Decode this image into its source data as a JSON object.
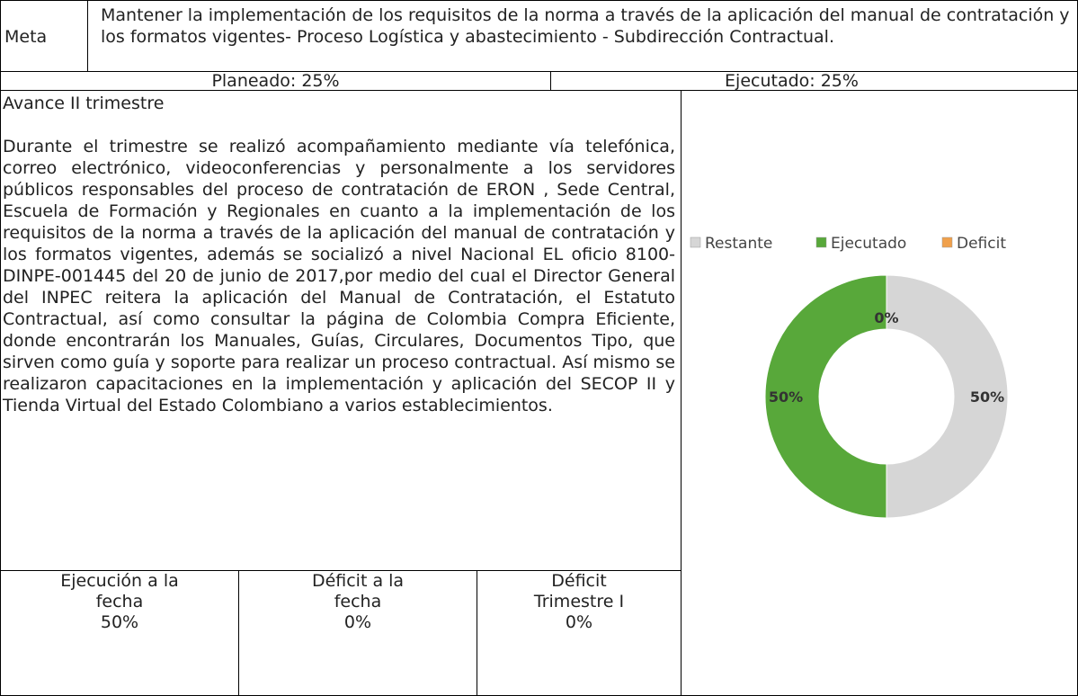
{
  "meta": {
    "label": "Meta",
    "text": "Mantener la implementación de los requisitos de la norma a través de la aplicación del manual de contratación y los formatos vigentes- Proceso Logística y abastecimiento - Subdirección Contractual."
  },
  "planeado": "Planeado: 25%",
  "ejecutado": "Ejecutado: 25%",
  "avance": {
    "heading": "Avance II trimestre",
    "body": "Durante el trimestre se realizó acompañamiento mediante vía telefónica, correo electrónico, videoconferencias y personalmente a los servidores públicos responsables del proceso de contratación de ERON , Sede Central, Escuela de Formación y  Regionales en cuanto a la implementación de los requisitos de la norma a través de la aplicación del manual de contratación y los formatos vigentes, además se socializó a nivel Nacional EL oficio 8100- DINPE-001445 del 20 de junio de 2017,por medio del cual el Director General del INPEC reitera la aplicación del Manual de Contratación, el Estatuto Contractual, así como consultar la página de Colombia Compra Eficiente, donde encontrarán los Manuales, Guías, Circulares, Documentos Tipo, que sirven como guía y soporte para realizar un proceso contractual. Así mismo se realizaron capacitaciones en la implementación y aplicación del SECOP II y Tienda Virtual del Estado Colombiano a varios establecimientos."
  },
  "summary": [
    {
      "label": "Ejecución a la fecha",
      "value": "50%"
    },
    {
      "label": "Déficit a la fecha",
      "value": "0%"
    },
    {
      "label": "Déficit Trimestre I",
      "value": "0%"
    }
  ],
  "chart_data": {
    "type": "donut",
    "categories": [
      "Restante",
      "Ejecutado",
      "Deficit"
    ],
    "values": [
      50,
      50,
      0
    ],
    "value_labels": [
      "50%",
      "50%",
      "0%"
    ],
    "colors": [
      "#d6d6d6",
      "#58a83a",
      "#f0a04b"
    ],
    "legend": "top"
  }
}
